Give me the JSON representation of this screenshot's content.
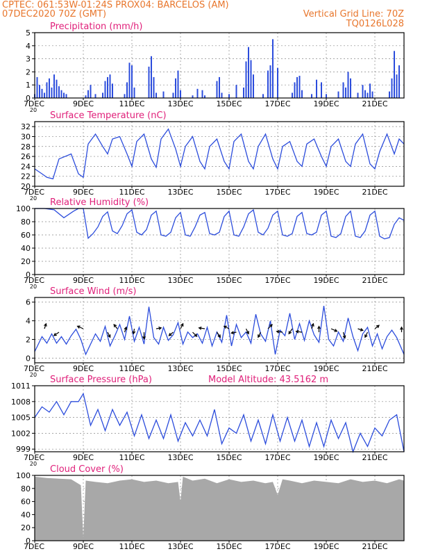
{
  "header": {
    "line1_left": "CPTEC:   061:53W-01:24S   PROX04: BARCELOS (AM)",
    "line2_left": "07DEC2020 70Z (GMT)",
    "line2_right": "Vertical Grid Line: 70Z",
    "line3_right": "TQ0126L028"
  },
  "colors": {
    "header": "#e8762c",
    "title": "#e0207a",
    "series": "#2b4cdc",
    "cloud": "#a8a8a8",
    "grid": "#888888"
  },
  "x_ticks": [
    "7DEC",
    "9DEC",
    "11DEC",
    "13DEC",
    "15DEC",
    "17DEC",
    "19DEC",
    "21DEC"
  ],
  "x_tick_days": [
    0,
    2,
    4,
    6,
    8,
    10,
    12,
    14
  ],
  "x_range_days": [
    0,
    15.2
  ],
  "cut_label": "20",
  "chart_data": [
    {
      "id": "precip",
      "type": "bar",
      "title": "Precipitation (mm/h)",
      "xlabel": "",
      "ylabel": "",
      "ylim": [
        0,
        5
      ],
      "yticks": [
        "0",
        "1",
        "2",
        "3",
        "4",
        "5"
      ],
      "ytick_values": [
        0,
        1,
        2,
        3,
        4,
        5
      ],
      "x_days": [
        0.0,
        0.1,
        0.2,
        0.3,
        0.4,
        0.5,
        0.6,
        0.7,
        0.8,
        0.9,
        1.0,
        1.1,
        1.2,
        1.3,
        2.1,
        2.2,
        2.3,
        2.5,
        2.8,
        2.9,
        3.0,
        3.1,
        3.2,
        3.7,
        3.8,
        3.9,
        4.0,
        4.1,
        4.7,
        4.8,
        4.9,
        5.0,
        5.3,
        5.7,
        5.8,
        5.9,
        6.0,
        6.5,
        6.7,
        6.9,
        7.0,
        7.5,
        7.6,
        7.7,
        8.0,
        8.3,
        8.6,
        8.7,
        8.8,
        8.9,
        9.0,
        9.4,
        9.6,
        9.7,
        9.8,
        10.0,
        10.6,
        10.7,
        10.8,
        10.9,
        11.0,
        11.4,
        11.6,
        11.8,
        12.0,
        12.5,
        12.7,
        12.8,
        12.9,
        13.0,
        13.3,
        13.5,
        13.6,
        13.7,
        13.8,
        13.9,
        14.6,
        14.7,
        14.8,
        14.9,
        15.0
      ],
      "values": [
        0.3,
        1.6,
        1.0,
        0.7,
        0.4,
        1.2,
        1.5,
        0.8,
        1.8,
        1.4,
        0.9,
        0.6,
        0.4,
        0.3,
        0.2,
        0.6,
        1.0,
        0.3,
        0.4,
        1.3,
        1.6,
        1.8,
        1.1,
        0.3,
        1.2,
        2.7,
        2.5,
        0.8,
        2.4,
        3.2,
        1.6,
        0.4,
        0.5,
        0.4,
        1.5,
        2.1,
        0.6,
        0.2,
        0.7,
        0.6,
        0.2,
        1.3,
        1.6,
        0.4,
        0.3,
        1.0,
        0.8,
        2.8,
        3.9,
        2.9,
        1.8,
        0.3,
        2.1,
        2.5,
        4.5,
        2.3,
        0.4,
        1.2,
        1.6,
        1.7,
        0.6,
        0.3,
        1.4,
        1.2,
        0.3,
        0.5,
        1.2,
        0.8,
        2.0,
        1.5,
        0.4,
        1.0,
        0.6,
        0.4,
        1.1,
        0.5,
        0.5,
        1.5,
        3.6,
        1.8,
        2.5
      ]
    },
    {
      "id": "temperature",
      "type": "line",
      "title": "Surface Temperature (nC)",
      "xlabel": "",
      "ylabel": "",
      "ylim": [
        20,
        33
      ],
      "yticks": [
        "20",
        "22",
        "24",
        "26",
        "28",
        "30",
        "32"
      ],
      "ytick_values": [
        20,
        22,
        24,
        26,
        28,
        30,
        32
      ],
      "x_days": [
        0,
        0.3,
        0.5,
        0.75,
        1.0,
        1.5,
        1.8,
        2.0,
        2.2,
        2.5,
        2.8,
        3.0,
        3.2,
        3.5,
        3.8,
        4.0,
        4.2,
        4.5,
        4.8,
        5.0,
        5.2,
        5.5,
        5.8,
        6.0,
        6.2,
        6.5,
        6.8,
        7.0,
        7.2,
        7.5,
        7.8,
        8.0,
        8.2,
        8.5,
        8.8,
        9.0,
        9.2,
        9.5,
        9.8,
        10.0,
        10.2,
        10.5,
        10.8,
        11.0,
        11.2,
        11.5,
        11.8,
        12.0,
        12.2,
        12.5,
        12.8,
        13.0,
        13.2,
        13.5,
        13.8,
        14.0,
        14.2,
        14.5,
        14.8,
        15.0,
        15.2
      ],
      "values": [
        23.5,
        22.5,
        21.8,
        21.5,
        25.5,
        26.5,
        22.5,
        21.8,
        28.5,
        30.5,
        28.0,
        26.5,
        29.5,
        30.0,
        26.5,
        24.0,
        29.0,
        30.5,
        25.5,
        23.8,
        29.5,
        31.5,
        27.5,
        24.0,
        28.0,
        30.0,
        25.0,
        23.5,
        28.0,
        29.5,
        25.0,
        23.5,
        29.0,
        30.5,
        25.0,
        23.5,
        28.0,
        30.5,
        25.5,
        23.5,
        28.0,
        29.0,
        25.0,
        24.0,
        28.5,
        29.5,
        26.0,
        24.0,
        28.0,
        29.5,
        25.0,
        24.0,
        28.5,
        30.5,
        24.5,
        23.5,
        27.0,
        30.5,
        26.5,
        29.5,
        28.5
      ]
    },
    {
      "id": "humidity",
      "type": "line",
      "title": "Relative Humidity (%)",
      "xlabel": "",
      "ylabel": "",
      "ylim": [
        0,
        100
      ],
      "yticks": [
        "0",
        "20",
        "40",
        "60",
        "80",
        "100"
      ],
      "ytick_values": [
        0,
        20,
        40,
        60,
        80,
        100
      ],
      "x_days": [
        0,
        0.4,
        0.8,
        1.2,
        1.6,
        1.8,
        2.0,
        2.2,
        2.4,
        2.6,
        2.8,
        3.0,
        3.2,
        3.4,
        3.6,
        3.8,
        4.0,
        4.2,
        4.4,
        4.6,
        4.8,
        5.0,
        5.2,
        5.4,
        5.6,
        5.8,
        6.0,
        6.2,
        6.4,
        6.6,
        6.8,
        7.0,
        7.2,
        7.4,
        7.6,
        7.8,
        8.0,
        8.2,
        8.4,
        8.6,
        8.8,
        9.0,
        9.2,
        9.4,
        9.6,
        9.8,
        10.0,
        10.2,
        10.4,
        10.6,
        10.8,
        11.0,
        11.2,
        11.4,
        11.6,
        11.8,
        12.0,
        12.2,
        12.4,
        12.6,
        12.8,
        13.0,
        13.2,
        13.4,
        13.6,
        13.8,
        14.0,
        14.2,
        14.4,
        14.6,
        14.8,
        15.0,
        15.2
      ],
      "values": [
        100,
        100,
        98,
        86,
        96,
        100,
        100,
        55,
        62,
        72,
        88,
        95,
        66,
        62,
        74,
        92,
        98,
        64,
        60,
        68,
        90,
        96,
        60,
        58,
        64,
        86,
        94,
        60,
        58,
        72,
        90,
        94,
        62,
        60,
        64,
        88,
        96,
        60,
        58,
        72,
        92,
        98,
        64,
        60,
        70,
        90,
        96,
        60,
        58,
        62,
        88,
        94,
        62,
        60,
        64,
        90,
        96,
        58,
        56,
        62,
        88,
        96,
        58,
        56,
        66,
        90,
        96,
        58,
        54,
        56,
        76,
        86,
        82
      ]
    },
    {
      "id": "wind",
      "type": "line",
      "title": "Surface Wind (m/s)",
      "xlabel": "",
      "ylabel": "",
      "ylim": [
        -0.5,
        6.5
      ],
      "yticks": [
        "0",
        "2",
        "4",
        "6"
      ],
      "ytick_values": [
        0,
        2,
        4,
        6
      ],
      "x_days": [
        0,
        0.3,
        0.5,
        0.7,
        0.9,
        1.1,
        1.3,
        1.5,
        1.7,
        1.9,
        2.1,
        2.3,
        2.5,
        2.7,
        2.9,
        3.1,
        3.3,
        3.5,
        3.7,
        3.9,
        4.1,
        4.3,
        4.5,
        4.7,
        4.9,
        5.1,
        5.3,
        5.5,
        5.7,
        5.9,
        6.1,
        6.3,
        6.5,
        6.7,
        6.9,
        7.1,
        7.3,
        7.5,
        7.7,
        7.9,
        8.1,
        8.3,
        8.5,
        8.7,
        8.9,
        9.1,
        9.3,
        9.5,
        9.7,
        9.9,
        10.1,
        10.3,
        10.5,
        10.7,
        10.9,
        11.1,
        11.3,
        11.5,
        11.7,
        11.9,
        12.1,
        12.3,
        12.5,
        12.7,
        12.9,
        13.1,
        13.3,
        13.5,
        13.7,
        13.9,
        14.1,
        14.3,
        14.5,
        14.7,
        14.9,
        15.2
      ],
      "values": [
        0.7,
        2.3,
        1.6,
        2.6,
        1.6,
        2.3,
        1.5,
        2.4,
        3.1,
        2.0,
        0.4,
        1.5,
        2.6,
        1.8,
        3.4,
        1.3,
        2.4,
        3.6,
        2.0,
        4.5,
        1.8,
        3.3,
        1.5,
        5.5,
        2.2,
        1.5,
        3.3,
        1.9,
        2.5,
        3.8,
        1.5,
        2.8,
        2.2,
        2.6,
        1.6,
        3.3,
        1.3,
        2.8,
        1.7,
        4.6,
        1.3,
        3.6,
        2.2,
        2.8,
        1.6,
        4.7,
        2.6,
        1.8,
        4.0,
        0.4,
        3.0,
        2.4,
        4.8,
        2.0,
        3.7,
        1.9,
        4.0,
        2.5,
        1.7,
        5.6,
        2.0,
        1.3,
        2.8,
        1.8,
        4.3,
        2.3,
        0.8,
        2.6,
        3.3,
        1.3,
        2.6,
        1.0,
        2.3,
        3.0,
        2.2,
        0.4
      ],
      "vectors": {
        "x_days": [
          0.4,
          1.0,
          2.0,
          3.0,
          3.4,
          3.7,
          4.1,
          4.5,
          5.0,
          5.7,
          6.0,
          6.5,
          7.0,
          7.5,
          8.0,
          8.3,
          8.7,
          9.3,
          9.6,
          10.2,
          10.6,
          11.0,
          11.4,
          11.7,
          12.2,
          12.7,
          13.3,
          13.7,
          14.0,
          15.1
        ],
        "u": [
          0.2,
          -0.6,
          -0.7,
          0.3,
          -0.4,
          0.2,
          -0.1,
          0.0,
          0.6,
          -0.5,
          0.3,
          0.5,
          -0.7,
          0.4,
          -0.6,
          -0.6,
          0.3,
          -0.3,
          0.5,
          -0.7,
          -0.4,
          -0.7,
          0.2,
          0.0,
          0.7,
          0.2,
          0.6,
          -0.3,
          0.5,
          0.0
        ],
        "v": [
          0.6,
          -0.4,
          0.3,
          -0.6,
          0.5,
          0.6,
          -0.6,
          -0.8,
          0.1,
          -0.4,
          0.6,
          -0.5,
          0.1,
          -0.6,
          0.3,
          -0.1,
          -0.6,
          -0.6,
          0.5,
          0.1,
          -0.6,
          0.1,
          0.6,
          0.7,
          -0.3,
          -0.7,
          -0.2,
          -0.6,
          0.4,
          0.6
        ]
      }
    },
    {
      "id": "pressure",
      "type": "line",
      "title": "Surface Pressure (hPa)",
      "annotation": "Model Altitude: 43.5162  m",
      "xlabel": "",
      "ylabel": "",
      "ylim": [
        998.5,
        1011
      ],
      "yticks": [
        "999",
        "1002",
        "1005",
        "1008",
        "1011"
      ],
      "ytick_values": [
        999,
        1002,
        1005,
        1008,
        1011
      ],
      "x_days": [
        0,
        0.3,
        0.6,
        0.9,
        1.2,
        1.5,
        1.8,
        2.0,
        2.3,
        2.6,
        2.9,
        3.2,
        3.5,
        3.8,
        4.1,
        4.4,
        4.7,
        5.0,
        5.3,
        5.6,
        5.9,
        6.2,
        6.5,
        6.8,
        7.1,
        7.4,
        7.7,
        8.0,
        8.3,
        8.6,
        8.9,
        9.2,
        9.5,
        9.8,
        10.1,
        10.4,
        10.7,
        11.0,
        11.3,
        11.6,
        11.9,
        12.2,
        12.5,
        12.8,
        13.1,
        13.4,
        13.7,
        14.0,
        14.3,
        14.6,
        14.9,
        15.2
      ],
      "values": [
        1005,
        1007,
        1006,
        1008,
        1005.5,
        1008,
        1008,
        1009.5,
        1003.5,
        1006.5,
        1002.5,
        1006.5,
        1003.5,
        1006,
        1001.5,
        1005.5,
        1001,
        1004.5,
        1001,
        1005.5,
        1000.5,
        1004,
        1001.5,
        1004.5,
        1001.5,
        1006.5,
        1000,
        1003,
        1002,
        1005.5,
        1000.5,
        1004.5,
        1000,
        1005.5,
        1000.5,
        1005,
        1000.5,
        1004.5,
        999.5,
        1004,
        999.5,
        1004.5,
        1001,
        1004,
        998.5,
        1002,
        999.5,
        1003,
        1001.5,
        1004.5,
        1005.5,
        998.5
      ]
    },
    {
      "id": "cloud",
      "type": "area",
      "title": "Cloud Cover (%)",
      "xlabel": "",
      "ylabel": "",
      "ylim": [
        0,
        100
      ],
      "yticks": [
        "0",
        "20",
        "40",
        "60",
        "80",
        "100"
      ],
      "ytick_values": [
        0,
        20,
        40,
        60,
        80,
        100
      ],
      "x_days": [
        0,
        0.5,
        1.0,
        1.5,
        1.9,
        2.0,
        2.1,
        2.5,
        3.0,
        3.5,
        4.0,
        4.5,
        5.0,
        5.5,
        5.9,
        6.0,
        6.1,
        6.5,
        7.0,
        7.5,
        8.0,
        8.5,
        9.0,
        9.5,
        9.8,
        10.0,
        10.2,
        10.5,
        11.0,
        11.5,
        12.0,
        12.5,
        13.0,
        13.5,
        14.0,
        14.5,
        15.0,
        15.2
      ],
      "values": [
        98,
        96,
        95,
        94,
        85,
        5,
        92,
        90,
        88,
        92,
        94,
        90,
        92,
        88,
        90,
        60,
        98,
        92,
        95,
        88,
        94,
        90,
        92,
        88,
        90,
        70,
        94,
        92,
        88,
        92,
        90,
        88,
        94,
        90,
        92,
        88,
        94,
        92
      ]
    }
  ]
}
